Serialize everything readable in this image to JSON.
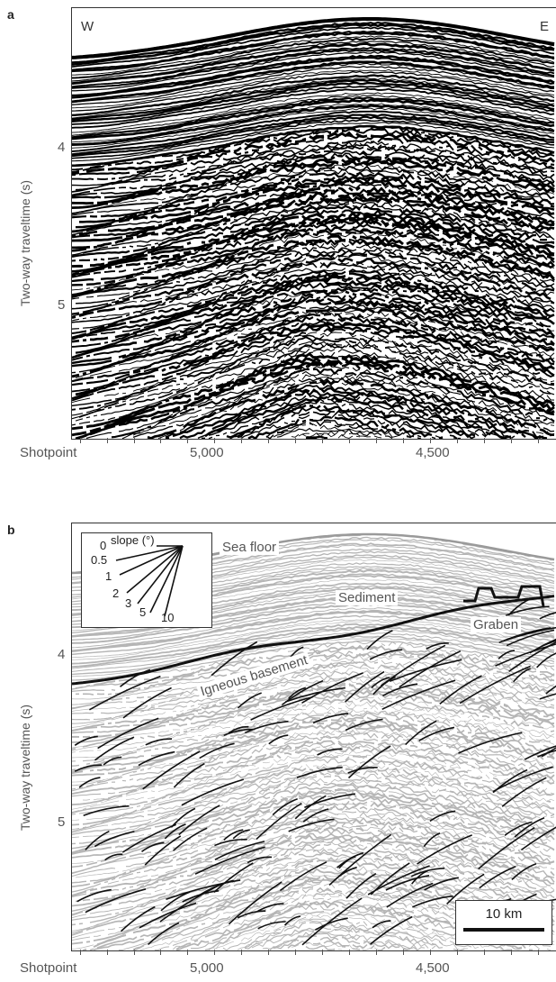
{
  "figure": {
    "panels": [
      {
        "letter": "a",
        "ylabel": "Two-way traveltime (s)",
        "yticks": [
          "4",
          "5"
        ],
        "xaxis_name": "Shotpoint",
        "xticks": [
          "5,000",
          "4,500"
        ],
        "corner_left": "W",
        "corner_right": "E"
      },
      {
        "letter": "b",
        "ylabel": "Two-way traveltime (s)",
        "yticks": [
          "4",
          "5"
        ],
        "xaxis_name": "Shotpoint",
        "xticks": [
          "5,000",
          "4,500"
        ],
        "labels": {
          "sea_floor": "Sea floor",
          "sediment": "Sediment",
          "graben": "Graben",
          "basement": "Igneous basement"
        },
        "slope_legend": {
          "title": "slope (°)",
          "values": [
            "0",
            "0.5",
            "1",
            "2",
            "3",
            "5",
            "10"
          ]
        },
        "scale_bar": "10 km"
      }
    ]
  }
}
